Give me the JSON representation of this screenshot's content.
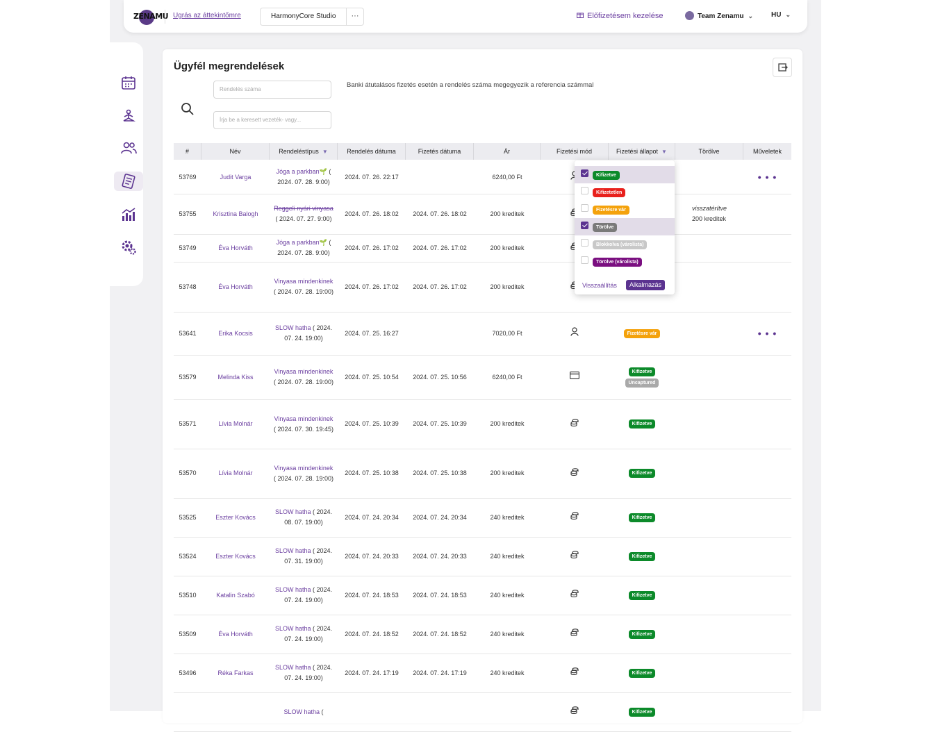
{
  "header": {
    "logo_text": "ZENAMU",
    "jump_link": "Ugrás az áttekintőmre",
    "studio_name": "HarmonyCore Studio",
    "studio_more": "···",
    "subscription_link": "Előfizetésem kezelése",
    "team_name": "Team Zenamu",
    "language": "HU"
  },
  "page": {
    "title": "Ügyfél megrendelések",
    "order_number_placeholder": "Rendelés száma",
    "name_search_placeholder": "Írja be a keresett vezeték- vagy...",
    "note": "Banki átutalásos fizetés esetén a rendelés száma megegyezik a referencia számmal"
  },
  "table": {
    "columns": [
      "#",
      "Név",
      "Rendeléstípus",
      "Rendelés dátuma",
      "Fizetés dátuma",
      "Ár",
      "Fizetési mód",
      "Fizetési állapot",
      "Törölve",
      "Műveletek"
    ],
    "rows": [
      {
        "id": "53769",
        "name": "Judit Varga",
        "type": "Jóga a parkban🌱",
        "type_date": "( 2024. 07. 28. 9:00)",
        "ordered": "2024. 07. 26. 22:17",
        "paid": "",
        "price": "6240,00 Ft",
        "method": "person",
        "status": [],
        "refund": "",
        "refund_amount": "",
        "actions": "• • •"
      },
      {
        "id": "53755",
        "name": "Krisztina Balogh",
        "type": "Reggeli nyári vinyasa",
        "type_date": "( 2024. 07. 27. 9:00)",
        "ordered": "2024. 07. 26. 18:02",
        "paid": "2024. 07. 26. 18:02",
        "price": "200 kreditek",
        "method": "coins",
        "status": [],
        "refund": "visszatérítve",
        "refund_amount": "200 kreditek",
        "actions": ""
      },
      {
        "id": "53749",
        "name": "Éva Horváth",
        "type": "Jóga a parkban🌱",
        "type_date": "( 2024. 07. 28. 9:00)",
        "ordered": "2024. 07. 26. 17:02",
        "paid": "2024. 07. 26. 17:02",
        "price": "200 kreditek",
        "method": "coins",
        "status": [],
        "refund": "",
        "refund_amount": "",
        "actions": ""
      },
      {
        "id": "53748",
        "name": "Éva Horváth",
        "type": "Vinyasa mindenkinek",
        "type_date": "( 2024. 07. 28. 19:00)",
        "ordered": "2024. 07. 26. 17:02",
        "paid": "2024. 07. 26. 17:02",
        "price": "200 kreditek",
        "method": "coins",
        "status": [],
        "refund": "",
        "refund_amount": "",
        "actions": ""
      },
      {
        "id": "53641",
        "name": "Erika Kocsis",
        "type": "SLOW hatha",
        "type_date": "( 2024. 07. 24. 19:00)",
        "ordered": "2024. 07. 25. 16:27",
        "paid": "",
        "price": "7020,00 Ft",
        "method": "person",
        "status": [
          "Fizetésre vár"
        ],
        "refund": "",
        "refund_amount": "",
        "actions": "• • •"
      },
      {
        "id": "53579",
        "name": "Melinda Kiss",
        "type": "Vinyasa mindenkinek",
        "type_date": "( 2024. 07. 28. 19:00)",
        "ordered": "2024. 07. 25. 10:54",
        "paid": "2024. 07. 25. 10:56",
        "price": "6240,00 Ft",
        "method": "card",
        "status": [
          "Kifizetve",
          "Uncaptured"
        ],
        "refund": "",
        "refund_amount": "",
        "actions": ""
      },
      {
        "id": "53571",
        "name": "Lívia Molnár",
        "type": "Vinyasa mindenkinek",
        "type_date": "( 2024. 07. 30. 19:45)",
        "ordered": "2024. 07. 25. 10:39",
        "paid": "2024. 07. 25. 10:39",
        "price": "200 kreditek",
        "method": "coins",
        "status": [
          "Kifizetve"
        ],
        "refund": "",
        "refund_amount": "",
        "actions": ""
      },
      {
        "id": "53570",
        "name": "Lívia Molnár",
        "type": "Vinyasa mindenkinek",
        "type_date": "( 2024. 07. 28. 19:00)",
        "ordered": "2024. 07. 25. 10:38",
        "paid": "2024. 07. 25. 10:38",
        "price": "200 kreditek",
        "method": "coins",
        "status": [
          "Kifizetve"
        ],
        "refund": "",
        "refund_amount": "",
        "actions": ""
      },
      {
        "id": "53525",
        "name": "Eszter Kovács",
        "type": "SLOW hatha",
        "type_date": "( 2024. 08. 07. 19:00)",
        "ordered": "2024. 07. 24. 20:34",
        "paid": "2024. 07. 24. 20:34",
        "price": "240 kreditek",
        "method": "coins",
        "status": [
          "Kifizetve"
        ],
        "refund": "",
        "refund_amount": "",
        "actions": ""
      },
      {
        "id": "53524",
        "name": "Eszter Kovács",
        "type": "SLOW hatha",
        "type_date": "( 2024. 07. 31. 19:00)",
        "ordered": "2024. 07. 24. 20:33",
        "paid": "2024. 07. 24. 20:33",
        "price": "240 kreditek",
        "method": "coins",
        "status": [
          "Kifizetve"
        ],
        "refund": "",
        "refund_amount": "",
        "actions": ""
      },
      {
        "id": "53510",
        "name": "Katalin Szabó",
        "type": "SLOW hatha",
        "type_date": "( 2024. 07. 24. 19:00)",
        "ordered": "2024. 07. 24. 18:53",
        "paid": "2024. 07. 24. 18:53",
        "price": "240 kreditek",
        "method": "coins",
        "status": [
          "Kifizetve"
        ],
        "refund": "",
        "refund_amount": "",
        "actions": ""
      },
      {
        "id": "53509",
        "name": "Éva Horváth",
        "type": "SLOW hatha",
        "type_date": "( 2024. 07. 24. 19:00)",
        "ordered": "2024. 07. 24. 18:52",
        "paid": "2024. 07. 24. 18:52",
        "price": "240 kreditek",
        "method": "coins",
        "status": [
          "Kifizetve"
        ],
        "refund": "",
        "refund_amount": "",
        "actions": ""
      },
      {
        "id": "53496",
        "name": "Réka Farkas",
        "type": "SLOW hatha",
        "type_date": "( 2024. 07. 24. 19:00)",
        "ordered": "2024. 07. 24. 17:19",
        "paid": "2024. 07. 24. 17:19",
        "price": "240 kreditek",
        "method": "coins",
        "status": [
          "Kifizetve"
        ],
        "refund": "",
        "refund_amount": "",
        "actions": ""
      },
      {
        "id": "",
        "name": "",
        "type": "SLOW hatha",
        "type_date": "(",
        "ordered": "",
        "paid": "",
        "price": "",
        "method": "coins",
        "status": [
          "Kifizetve"
        ],
        "refund": "",
        "refund_amount": "",
        "actions": ""
      }
    ]
  },
  "status_filter": {
    "options": [
      {
        "label": "Kifizetve",
        "checked": true,
        "color": "#0c8a2a"
      },
      {
        "label": "Kifizetetlen",
        "checked": false,
        "color": "#e8201c"
      },
      {
        "label": "Fizetésre vár",
        "checked": false,
        "color": "#f4a20c"
      },
      {
        "label": "Törölve",
        "checked": true,
        "color": "#7a7a7a"
      },
      {
        "label": "Blokkolva (várolista)",
        "checked": false,
        "color": "#c8c8c8"
      },
      {
        "label": "Törölve (várolista)",
        "checked": false,
        "color": "#7a0f80"
      }
    ],
    "reset_label": "Visszaállítás",
    "apply_label": "Alkalmazás"
  },
  "colors": {
    "accent": "#5b3390",
    "link": "#6b3fa0"
  }
}
